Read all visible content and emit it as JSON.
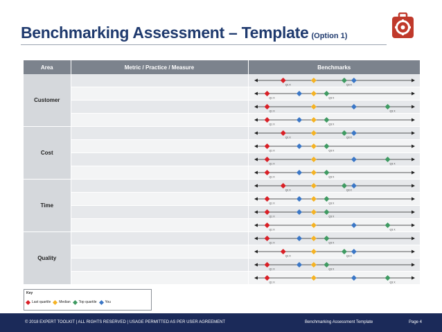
{
  "title": {
    "main": "Benchmarking Assessment – Template",
    "option": "(Option 1)"
  },
  "table": {
    "headers": {
      "area": "Area",
      "metric": "Metric / Practice / Measure",
      "benchmarks": "Benchmarks"
    },
    "groups": [
      {
        "area": "Customer",
        "rows": [
          {
            "metric": "",
            "markers": [
              {
                "type": "last",
                "pos": 0.18,
                "label": "Q1 X"
              },
              {
                "type": "median",
                "pos": 0.37
              },
              {
                "type": "top",
                "pos": 0.56,
                "label": "Q3 X"
              },
              {
                "type": "you",
                "pos": 0.62
              }
            ]
          },
          {
            "metric": "",
            "markers": [
              {
                "type": "last",
                "pos": 0.08,
                "label": "Q1 X"
              },
              {
                "type": "you",
                "pos": 0.28
              },
              {
                "type": "median",
                "pos": 0.37
              },
              {
                "type": "top",
                "pos": 0.45,
                "label": "Q3 X"
              }
            ]
          },
          {
            "metric": "",
            "markers": [
              {
                "type": "last",
                "pos": 0.08,
                "label": "Q1 X"
              },
              {
                "type": "median",
                "pos": 0.37
              },
              {
                "type": "you",
                "pos": 0.62
              },
              {
                "type": "top",
                "pos": 0.83,
                "label": "Q3 X"
              }
            ]
          },
          {
            "metric": "",
            "markers": [
              {
                "type": "last",
                "pos": 0.08,
                "label": "Q1 X"
              },
              {
                "type": "you",
                "pos": 0.28
              },
              {
                "type": "median",
                "pos": 0.37
              },
              {
                "type": "top",
                "pos": 0.45,
                "label": "Q3 X"
              }
            ]
          }
        ]
      },
      {
        "area": "Cost",
        "rows": [
          {
            "metric": "",
            "markers": [
              {
                "type": "last",
                "pos": 0.18,
                "label": "Q1 X"
              },
              {
                "type": "median",
                "pos": 0.37
              },
              {
                "type": "top",
                "pos": 0.56,
                "label": "Q3 X"
              },
              {
                "type": "you",
                "pos": 0.62
              }
            ]
          },
          {
            "metric": "",
            "markers": [
              {
                "type": "last",
                "pos": 0.08,
                "label": "Q1 X"
              },
              {
                "type": "you",
                "pos": 0.28
              },
              {
                "type": "median",
                "pos": 0.37
              },
              {
                "type": "top",
                "pos": 0.45,
                "label": "Q3 X"
              }
            ]
          },
          {
            "metric": "",
            "markers": [
              {
                "type": "last",
                "pos": 0.08,
                "label": "Q1 X"
              },
              {
                "type": "median",
                "pos": 0.37
              },
              {
                "type": "you",
                "pos": 0.62
              },
              {
                "type": "top",
                "pos": 0.83,
                "label": "Q3 X"
              }
            ]
          },
          {
            "metric": "",
            "markers": [
              {
                "type": "last",
                "pos": 0.08,
                "label": "Q1 X"
              },
              {
                "type": "you",
                "pos": 0.28
              },
              {
                "type": "median",
                "pos": 0.37
              },
              {
                "type": "top",
                "pos": 0.45,
                "label": "Q3 X"
              }
            ]
          }
        ]
      },
      {
        "area": "Time",
        "rows": [
          {
            "metric": "",
            "markers": [
              {
                "type": "last",
                "pos": 0.18,
                "label": "Q1 X"
              },
              {
                "type": "median",
                "pos": 0.37
              },
              {
                "type": "top",
                "pos": 0.56,
                "label": "Q3 X"
              },
              {
                "type": "you",
                "pos": 0.62
              }
            ]
          },
          {
            "metric": "",
            "markers": [
              {
                "type": "last",
                "pos": 0.08,
                "label": "Q1 X"
              },
              {
                "type": "you",
                "pos": 0.28
              },
              {
                "type": "median",
                "pos": 0.37
              },
              {
                "type": "top",
                "pos": 0.45,
                "label": "Q3 X"
              }
            ]
          },
          {
            "metric": "",
            "markers": [
              {
                "type": "last",
                "pos": 0.08,
                "label": "Q1 X"
              },
              {
                "type": "you",
                "pos": 0.28
              },
              {
                "type": "median",
                "pos": 0.37
              },
              {
                "type": "top",
                "pos": 0.45,
                "label": "Q3 X"
              }
            ]
          },
          {
            "metric": "",
            "markers": [
              {
                "type": "last",
                "pos": 0.08,
                "label": "Q1 X"
              },
              {
                "type": "median",
                "pos": 0.37
              },
              {
                "type": "you",
                "pos": 0.62
              },
              {
                "type": "top",
                "pos": 0.83,
                "label": "Q3 X"
              }
            ]
          }
        ]
      },
      {
        "area": "Quality",
        "rows": [
          {
            "metric": "",
            "markers": [
              {
                "type": "last",
                "pos": 0.08,
                "label": "Q1 X"
              },
              {
                "type": "you",
                "pos": 0.28
              },
              {
                "type": "median",
                "pos": 0.37
              },
              {
                "type": "top",
                "pos": 0.45,
                "label": "Q3 X"
              }
            ]
          },
          {
            "metric": "",
            "markers": [
              {
                "type": "last",
                "pos": 0.18,
                "label": "Q1 X"
              },
              {
                "type": "median",
                "pos": 0.37
              },
              {
                "type": "top",
                "pos": 0.56,
                "label": "Q3 X"
              },
              {
                "type": "you",
                "pos": 0.62
              }
            ]
          },
          {
            "metric": "",
            "markers": [
              {
                "type": "last",
                "pos": 0.08,
                "label": "Q1 X"
              },
              {
                "type": "you",
                "pos": 0.28
              },
              {
                "type": "median",
                "pos": 0.37
              },
              {
                "type": "top",
                "pos": 0.45,
                "label": "Q3 X"
              }
            ]
          },
          {
            "metric": "",
            "markers": [
              {
                "type": "last",
                "pos": 0.08,
                "label": "Q1 X"
              },
              {
                "type": "median",
                "pos": 0.37
              },
              {
                "type": "you",
                "pos": 0.62
              },
              {
                "type": "top",
                "pos": 0.83,
                "label": "Q3 X"
              }
            ]
          }
        ]
      }
    ]
  },
  "key": {
    "title": "Key",
    "items": [
      {
        "type": "last",
        "label": "Last quartile"
      },
      {
        "type": "median",
        "label": "Median"
      },
      {
        "type": "top",
        "label": "Top quartile"
      },
      {
        "type": "you",
        "label": "You"
      }
    ]
  },
  "colors": {
    "last": "#d91f26",
    "median": "#f5b324",
    "top": "#3f9a62",
    "you": "#3b77c6",
    "header": "#7c838d",
    "footer": "#1b2a59",
    "title": "#1f3a6e",
    "logo": "#c0392b"
  },
  "footer": {
    "copyright": "© 2018 EXPERT TOOLKIT | ALL RIGHTS RESERVED | USAGE PERMITTED AS PER USER AGREEMENT",
    "doc_title": "Benchmarking Assessment Template",
    "page": "Page 4"
  },
  "logo_icon": "toolbox-gear-icon"
}
